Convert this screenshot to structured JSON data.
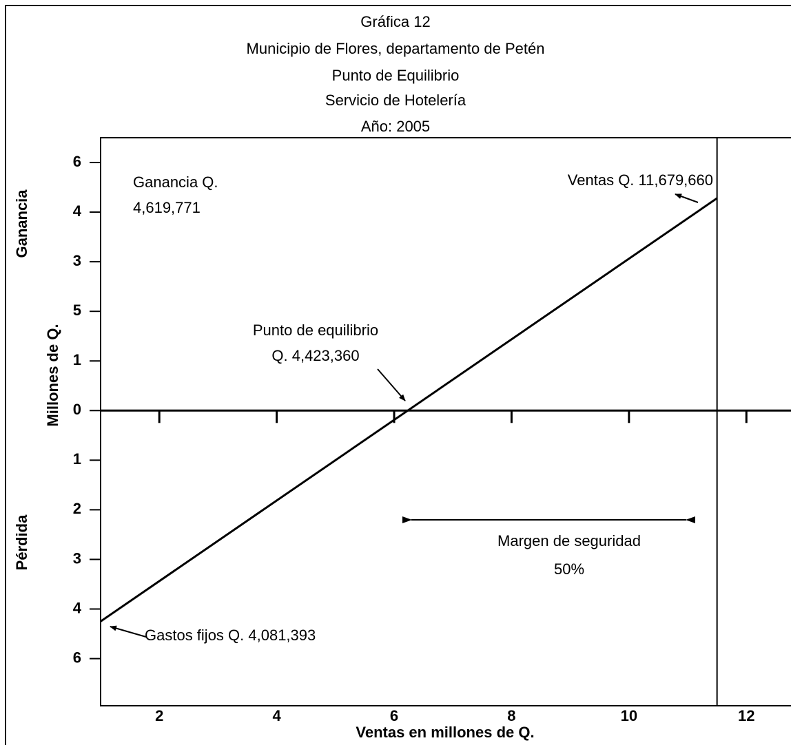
{
  "chart_data": {
    "type": "line",
    "title": [
      "Gráfica 12",
      "Municipio de Flores, departamento de Petén",
      "Punto de Equilibrio",
      "Servicio de Hotelería",
      "Año: 2005"
    ],
    "xlabel": "Ventas en millones de Q.",
    "ylabel": "Millones de Q.",
    "ylabel_top": "Ganancia",
    "ylabel_bottom": "Pérdida",
    "xlim": [
      1,
      12.76
    ],
    "ylim": [
      -5.95,
      5.5
    ],
    "xticks": [
      2,
      4,
      6,
      8,
      10,
      12
    ],
    "yticks": [
      {
        "value": 5,
        "label": "6"
      },
      4,
      3,
      {
        "value": 2,
        "label": "5"
      },
      1,
      0,
      {
        "value": -1,
        "label": "1"
      },
      {
        "value": -2,
        "label": "2"
      },
      {
        "value": -3,
        "label": "3"
      },
      {
        "value": -4,
        "label": "4"
      },
      {
        "value": -5,
        "label": "6"
      }
    ],
    "series": [
      {
        "color": "#000000",
        "x": [
          1,
          11.5
        ],
        "values": [
          -4.25,
          4.28
        ]
      }
    ],
    "reference_x": 11.5,
    "annotations": {
      "profit": [
        "Ganancia Q.",
        "4,619,771"
      ],
      "sales": "Ventas Q. 11,679,660",
      "breakeven": [
        "Punto de equilibrio",
        "Q. 4,423,360"
      ],
      "margin": [
        "Margen de seguridad",
        "50%"
      ],
      "fixed_costs": "Gastos fijos Q. 4,081,393"
    }
  }
}
